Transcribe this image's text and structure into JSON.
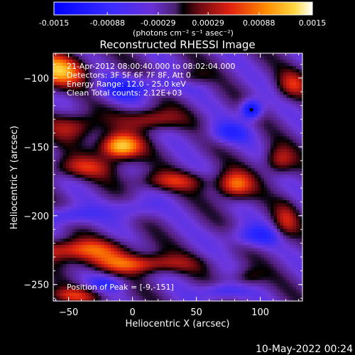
{
  "colorbar": {
    "tick_labels": [
      "-0.0015",
      "-0.00088",
      "-0.00029",
      "0.00029",
      "0.00088",
      "0.0015"
    ],
    "range": [
      -0.0015,
      0.0015
    ],
    "unit_label": "(photons cm⁻² s⁻¹ asec⁻²)"
  },
  "chart_data": {
    "type": "heatmap",
    "title": "Reconstructed RHESSI Image",
    "xlabel": "Heliocentric X (arcsec)",
    "ylabel": "Heliocentric Y (arcsec)",
    "xlim": [
      -62,
      133
    ],
    "ylim": [
      -262,
      -82
    ],
    "x_ticks": [
      -50,
      0,
      50,
      100
    ],
    "y_ticks": [
      -100,
      -150,
      -200,
      -250
    ],
    "x_tick_labels": [
      "−50",
      "0",
      "50",
      "100"
    ],
    "y_tick_labels": [
      "−100",
      "−150",
      "−200",
      "−250"
    ],
    "annotations": [
      "21-Apr-2012 08:00:40.000 to 08:02:04.000",
      "Detectors: 3F 5F 6F 7F 8F, Att 0",
      "Energy Range: 12.0 - 25.0 keV",
      "Clean     Total counts: 2.12E+03"
    ],
    "peak_label": "Position of Peak = [-9,-151]",
    "marker": {
      "x": 93,
      "y": -123
    }
  },
  "footer": {
    "date": "10-May-2022 00:24"
  }
}
